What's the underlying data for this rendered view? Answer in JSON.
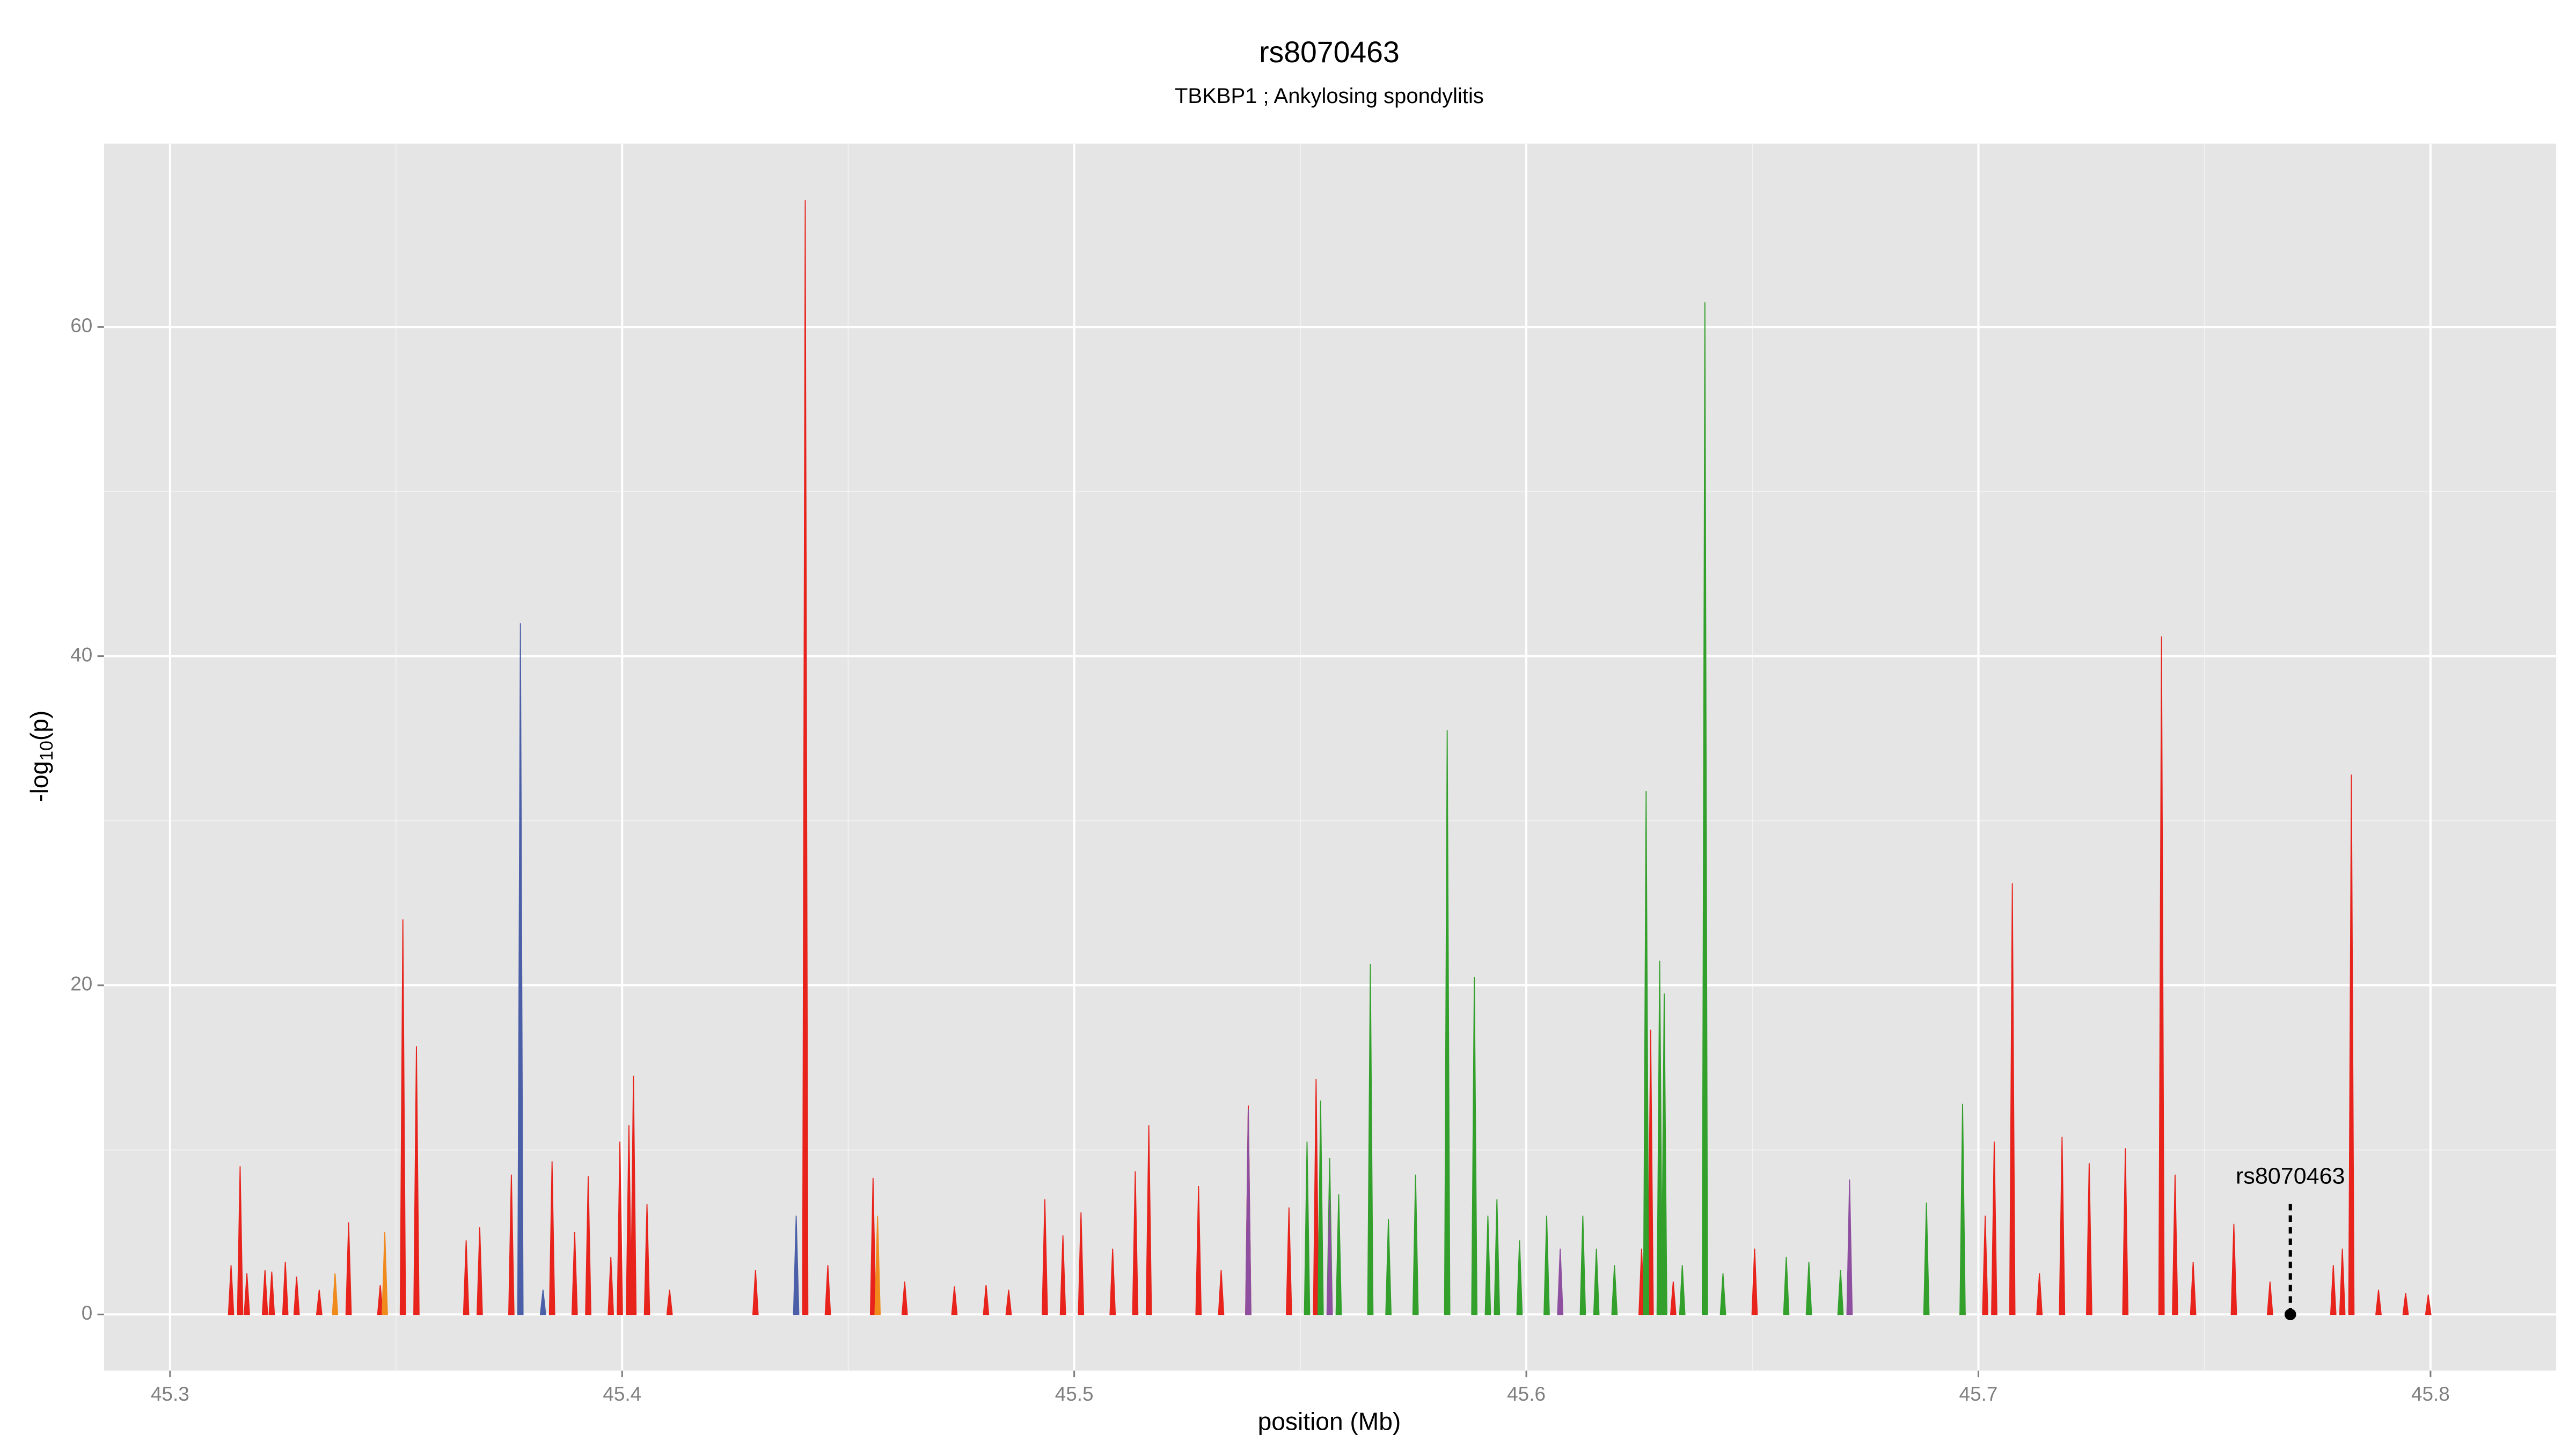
{
  "chart_data": {
    "type": "spike",
    "title": "rs8070463",
    "subtitle": "TBKBP1 ; Ankylosing spondylitis",
    "xlabel": "position (Mb)",
    "ylabel_parts": [
      "-log",
      "10",
      "(p)"
    ],
    "xlim": [
      45.2854,
      45.8278
    ],
    "ylim": [
      -3.41,
      71.14
    ],
    "xticks": [
      45.3,
      45.4,
      45.5,
      45.6,
      45.7,
      45.8
    ],
    "yticks": [
      0,
      20,
      40,
      60
    ],
    "x_minor_grid": [
      45.35,
      45.45,
      45.55,
      45.65,
      45.75
    ],
    "y_minor_grid": [
      10,
      30,
      50
    ],
    "grid": true,
    "background": "#e5e5e5",
    "series": [
      {
        "color": "#e8231c",
        "x": [
          45.3135,
          45.3155,
          45.317,
          45.321,
          45.3225,
          45.3255,
          45.328,
          45.333,
          45.3395,
          45.3465,
          45.3515,
          45.3545,
          45.3655,
          45.3685,
          45.3755,
          45.3845,
          45.3895,
          45.3925,
          45.3975,
          45.3995,
          45.4015,
          45.4025,
          45.4055,
          45.4105,
          45.4295,
          45.4405,
          45.4455,
          45.4555,
          45.4625,
          45.4735,
          45.4805,
          45.4855,
          45.4935,
          45.4975,
          45.5015,
          45.5085,
          45.5135,
          45.5165,
          45.5275,
          45.5325,
          45.5385,
          45.5475,
          45.5535,
          45.6255,
          45.6275,
          45.6325,
          45.6505,
          45.6965,
          45.7015,
          45.7035,
          45.7075,
          45.7135,
          45.7185,
          45.7245,
          45.7325,
          45.7405,
          45.7435,
          45.7475,
          45.7565,
          45.7645,
          45.7785,
          45.7805,
          45.7825,
          45.7885,
          45.7945,
          45.7995
        ],
        "values": [
          3,
          9,
          2.5,
          2.7,
          2.6,
          3.2,
          2.3,
          1.5,
          5.6,
          1.8,
          24,
          16.3,
          4.5,
          5.3,
          8.5,
          9.3,
          5,
          8.4,
          3.5,
          10.5,
          11.5,
          14.5,
          6.7,
          1.5,
          2.7,
          67.7,
          3,
          8.3,
          2,
          1.7,
          1.8,
          1.5,
          7,
          4.8,
          6.2,
          4,
          8.7,
          11.5,
          7.8,
          2.7,
          12.7,
          6.5,
          14.3,
          4,
          17.3,
          2,
          4,
          2.5,
          6,
          10.5,
          26.2,
          2.5,
          10.8,
          9.2,
          10.1,
          41.2,
          8.5,
          3.2,
          5.5,
          2,
          3,
          4,
          32.8,
          1.5,
          1.3,
          1.2
        ]
      },
      {
        "color": "#33a02c",
        "x": [
          45.5515,
          45.5545,
          45.5565,
          45.5585,
          45.5655,
          45.5695,
          45.5755,
          45.5825,
          45.5885,
          45.5915,
          45.5935,
          45.5985,
          45.6045,
          45.6125,
          45.6155,
          45.6195,
          45.6265,
          45.6295,
          45.6305,
          45.6345,
          45.6395,
          45.6435,
          45.6575,
          45.6625,
          45.6695,
          45.6885,
          45.6965
        ],
        "values": [
          10.5,
          13,
          9.5,
          7.3,
          21.3,
          5.8,
          8.5,
          35.5,
          20.5,
          6,
          7,
          4.5,
          6,
          6,
          4,
          3,
          31.8,
          21.5,
          19.5,
          3,
          61.5,
          2.5,
          3.5,
          3.2,
          2.7,
          6.8,
          12.8
        ]
      },
      {
        "color": "#4a5fa8",
        "x": [
          45.3775,
          45.4385,
          45.3825
        ],
        "values": [
          42,
          6,
          1.5
        ]
      },
      {
        "color": "#8e4fa0",
        "x": [
          45.5385,
          45.6715,
          45.6075,
          45.5565
        ],
        "values": [
          12.5,
          8.2,
          4,
          7
        ]
      },
      {
        "color": "#f08a1c",
        "x": [
          45.3475,
          45.3365,
          45.4565
        ],
        "values": [
          5,
          2.5,
          6
        ]
      }
    ],
    "annotations": [
      {
        "text": "rs8070463",
        "x": 45.769,
        "y": 0
      }
    ]
  }
}
